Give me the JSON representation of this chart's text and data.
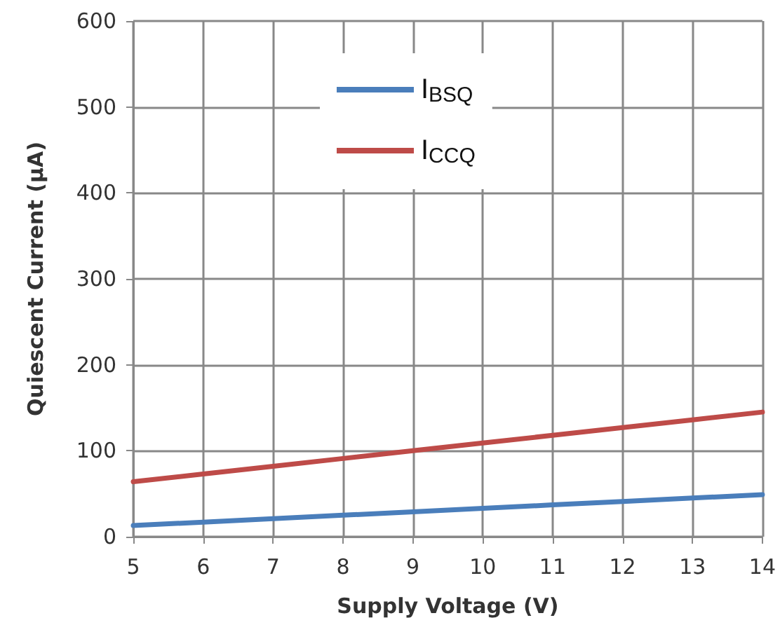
{
  "chart_data": {
    "type": "line",
    "xlabel": "Supply Voltage (V)",
    "ylabel": "Quiescent Current (μA)",
    "x": [
      5,
      6,
      7,
      8,
      9,
      10,
      11,
      12,
      13,
      14
    ],
    "series": [
      {
        "name": "I$_{BSQ}$",
        "color": "#4a7ebb",
        "values": [
          13,
          17,
          21,
          25,
          29,
          33,
          37,
          41,
          45,
          49
        ]
      },
      {
        "name": "I$_{CCQ}$",
        "color": "#be4b48",
        "values": [
          64,
          73,
          82,
          91,
          100,
          109,
          118,
          127,
          136,
          145
        ]
      }
    ],
    "xlim": [
      5,
      14
    ],
    "xticks": [
      5,
      6,
      7,
      8,
      9,
      10,
      11,
      12,
      13,
      14
    ],
    "ylim": [
      0,
      600
    ],
    "yticks": [
      0,
      100,
      200,
      300,
      400,
      500,
      600
    ],
    "grid": true,
    "legend": "top",
    "marker": "none",
    "line_style": "solid"
  }
}
